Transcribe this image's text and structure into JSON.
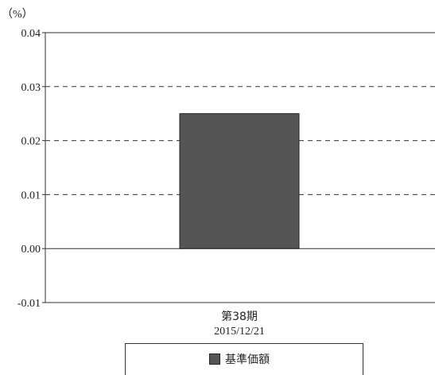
{
  "chart_data": {
    "type": "bar",
    "unit_label": "（%）",
    "categories": [
      {
        "label": "第38期",
        "date": "2015/12/21"
      }
    ],
    "series": [
      {
        "name": "基準価額",
        "values": [
          0.025
        ],
        "color": "#555555"
      }
    ],
    "ylim": [
      -0.01,
      0.04
    ],
    "yticks": [
      "0.04",
      "0.03",
      "0.02",
      "0.01",
      "0.00",
      "-0.01"
    ],
    "ytick_values": [
      0.04,
      0.03,
      0.02,
      0.01,
      0.0,
      -0.01
    ],
    "grid": "dashed",
    "legend": "bottom"
  }
}
